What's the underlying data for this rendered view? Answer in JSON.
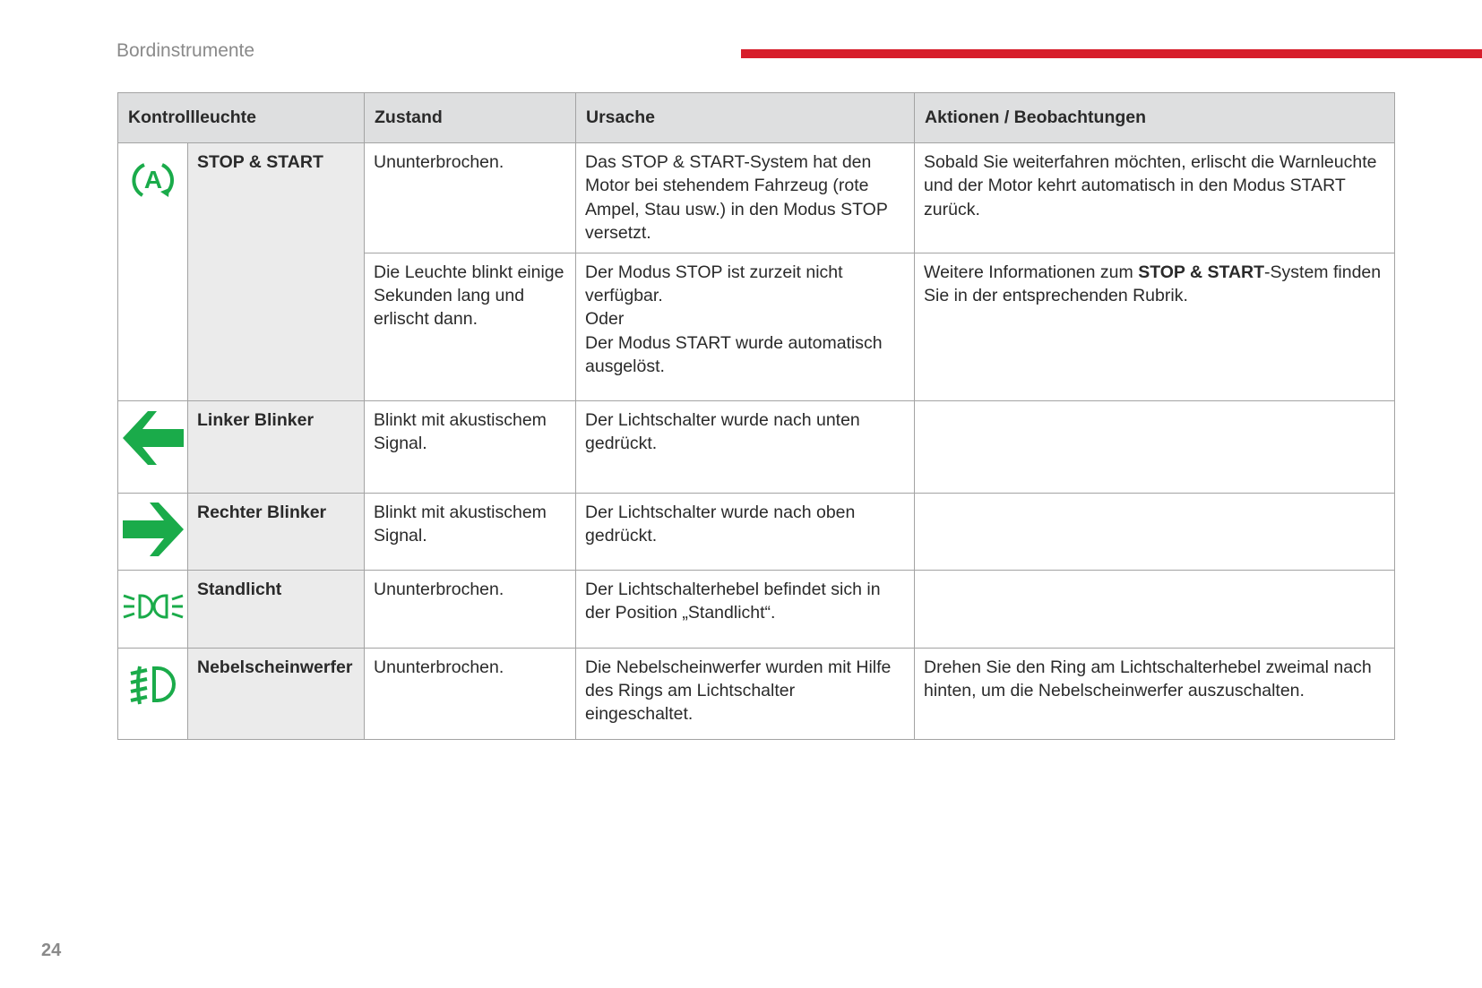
{
  "header": {
    "section_title": "Bordinstrumente",
    "page_number": "24",
    "accent_color": "#d71e2b"
  },
  "table": {
    "columns": [
      "Kontrollleuchte",
      "Zustand",
      "Ursache",
      "Aktionen / Beobachtungen"
    ],
    "icon_color": "#1aab4a",
    "rows": [
      {
        "icon": "stop-start-icon",
        "name": "STOP & START",
        "states": [
          {
            "zustand": "Ununterbrochen.",
            "ursache": "Das STOP & START-System hat den Motor bei stehendem Fahrzeug (rote Ampel, Stau usw.) in den Modus STOP versetzt.",
            "aktion": "Sobald Sie weiterfahren möchten, erlischt die Warnleuchte und der Motor kehrt automatisch in den Modus START zurück."
          },
          {
            "zustand": "Die Leuchte blinkt einige Sekunden lang und erlischt dann.",
            "ursache_1": "Der Modus STOP ist zurzeit nicht verfügbar.",
            "ursache_2": "Oder",
            "ursache_3": "Der Modus START wurde automatisch ausgelöst.",
            "aktion_pre": "Weitere Informationen zum ",
            "aktion_bold": "STOP & START",
            "aktion_post": "-System finden Sie in der entsprechenden Rubrik."
          }
        ]
      },
      {
        "icon": "left-arrow-icon",
        "name": "Linker Blinker",
        "zustand": "Blinkt mit akustischem Signal.",
        "ursache": "Der Lichtschalter wurde nach unten gedrückt.",
        "aktion": ""
      },
      {
        "icon": "right-arrow-icon",
        "name": "Rechter Blinker",
        "zustand": "Blinkt mit akustischem Signal.",
        "ursache": "Der Lichtschalter wurde nach oben gedrückt.",
        "aktion": ""
      },
      {
        "icon": "sidelights-icon",
        "name": "Standlicht",
        "zustand": "Ununterbrochen.",
        "ursache": "Der Lichtschalterhebel befindet sich in der Position „Standlicht“.",
        "aktion": ""
      },
      {
        "icon": "front-fog-lamp-icon",
        "name": "Nebelscheinwerfer",
        "zustand": "Ununterbrochen.",
        "ursache": "Die Nebelscheinwerfer wurden mit Hilfe des Rings am Lichtschalter eingeschaltet.",
        "aktion": "Drehen Sie den Ring am Lichtschalterhebel zweimal nach hinten, um die Nebelscheinwerfer auszuschalten."
      }
    ]
  }
}
